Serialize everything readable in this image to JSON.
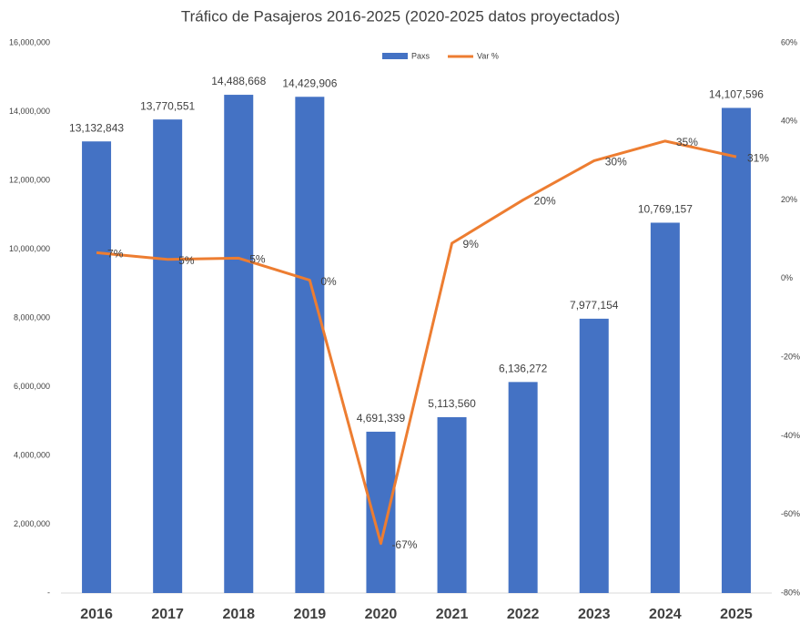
{
  "chart_data": {
    "type": "bar",
    "title": "Tráfico de Pasajeros 2016-2025 (2020-2025 datos proyectados)",
    "categories": [
      "2016",
      "2017",
      "2018",
      "2019",
      "2020",
      "2021",
      "2022",
      "2023",
      "2024",
      "2025"
    ],
    "series": [
      {
        "name": "Paxs",
        "type": "bar",
        "color": "#4472c4",
        "values": [
          13132843,
          13770551,
          14488668,
          14429906,
          4691339,
          5113560,
          6136272,
          7977154,
          10769157,
          14107596
        ],
        "value_labels": [
          "13,132,843",
          "13,770,551",
          "14,488,668",
          "14,429,906",
          "4,691,339",
          "5,113,560",
          "6,136,272",
          "7,977,154",
          "10,769,157",
          "14,107,596"
        ]
      },
      {
        "name": "Var %",
        "type": "line",
        "axis": "y2",
        "color": "#ed7d31",
        "values": [
          6.6,
          4.9,
          5.2,
          -0.4,
          -67.4,
          9.0,
          20.0,
          30.0,
          35.0,
          31.0
        ],
        "value_labels": [
          "7%",
          "5%",
          "5%",
          "0%",
          "-67%",
          "9%",
          "20%",
          "30%",
          "35%",
          "31%"
        ]
      }
    ],
    "ylim": [
      0,
      16000000
    ],
    "yticks": [
      {
        "value": 0,
        "label": "-"
      },
      {
        "value": 2000000,
        "label": "2,000,000"
      },
      {
        "value": 4000000,
        "label": "4,000,000"
      },
      {
        "value": 6000000,
        "label": "6,000,000"
      },
      {
        "value": 8000000,
        "label": "8,000,000"
      },
      {
        "value": 10000000,
        "label": "10,000,000"
      },
      {
        "value": 12000000,
        "label": "12,000,000"
      },
      {
        "value": 14000000,
        "label": "14,000,000"
      },
      {
        "value": 16000000,
        "label": "16,000,000"
      }
    ],
    "y2lim": [
      -80,
      60
    ],
    "y2ticks": [
      {
        "value": -80,
        "label": "-80%"
      },
      {
        "value": -60,
        "label": "-60%"
      },
      {
        "value": -40,
        "label": "-40%"
      },
      {
        "value": -20,
        "label": "-20%"
      },
      {
        "value": 0,
        "label": "0%"
      },
      {
        "value": 20,
        "label": "20%"
      },
      {
        "value": 40,
        "label": "40%"
      },
      {
        "value": 60,
        "label": "60%"
      }
    ],
    "legend": "top"
  }
}
